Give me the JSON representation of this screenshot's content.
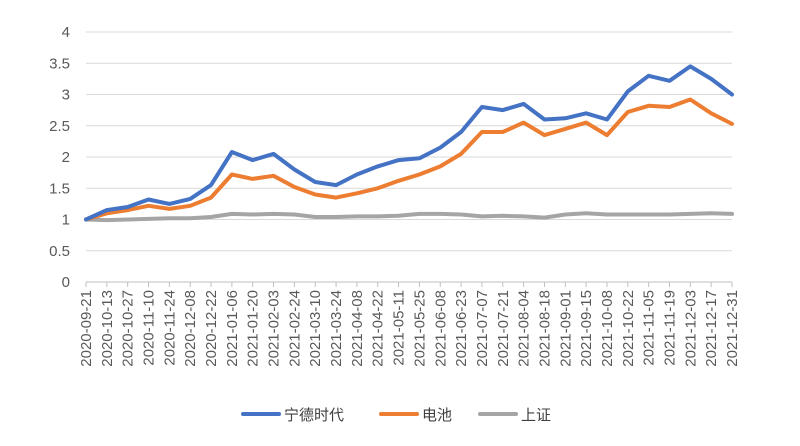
{
  "chart_data": {
    "type": "line",
    "title": "",
    "xlabel": "",
    "ylabel": "",
    "ylim": [
      0,
      4
    ],
    "yticks": [
      0,
      0.5,
      1,
      1.5,
      2,
      2.5,
      3,
      3.5,
      4
    ],
    "grid": "horizontal",
    "legend": "bottom",
    "x": [
      "2020-09-21",
      "2020-10-13",
      "2020-10-27",
      "2020-11-10",
      "2020-11-24",
      "2020-12-08",
      "2020-12-22",
      "2021-01-06",
      "2021-01-20",
      "2021-02-03",
      "2021-02-24",
      "2021-03-10",
      "2021-03-24",
      "2021-04-08",
      "2021-04-22",
      "2021-05-11",
      "2021-05-25",
      "2021-06-08",
      "2021-06-23",
      "2021-07-07",
      "2021-07-21",
      "2021-08-04",
      "2021-08-18",
      "2021-09-01",
      "2021-09-15",
      "2021-10-08",
      "2021-10-22",
      "2021-11-05",
      "2021-11-19",
      "2021-12-03",
      "2021-12-17",
      "2021-12-31"
    ],
    "series": [
      {
        "name": "宁德时代",
        "color": "#4472c4",
        "values": [
          1.0,
          1.15,
          1.2,
          1.32,
          1.25,
          1.33,
          1.55,
          2.08,
          1.95,
          2.05,
          1.8,
          1.6,
          1.55,
          1.72,
          1.85,
          1.95,
          1.98,
          2.15,
          2.4,
          2.8,
          2.75,
          2.85,
          2.6,
          2.62,
          2.7,
          2.6,
          3.05,
          3.3,
          3.22,
          3.45,
          3.25,
          3.0
        ]
      },
      {
        "name": "电池",
        "color": "#ed7d31",
        "values": [
          1.0,
          1.1,
          1.15,
          1.22,
          1.17,
          1.22,
          1.35,
          1.72,
          1.65,
          1.7,
          1.52,
          1.4,
          1.35,
          1.42,
          1.5,
          1.62,
          1.72,
          1.85,
          2.05,
          2.4,
          2.4,
          2.55,
          2.35,
          2.45,
          2.55,
          2.35,
          2.72,
          2.82,
          2.8,
          2.92,
          2.7,
          2.53
        ]
      },
      {
        "name": "上证",
        "color": "#a5a5a5",
        "values": [
          1.0,
          0.99,
          1.0,
          1.01,
          1.02,
          1.02,
          1.04,
          1.09,
          1.08,
          1.09,
          1.08,
          1.04,
          1.04,
          1.05,
          1.05,
          1.06,
          1.09,
          1.09,
          1.08,
          1.05,
          1.06,
          1.05,
          1.03,
          1.08,
          1.1,
          1.08,
          1.08,
          1.08,
          1.08,
          1.09,
          1.1,
          1.09
        ]
      }
    ]
  }
}
